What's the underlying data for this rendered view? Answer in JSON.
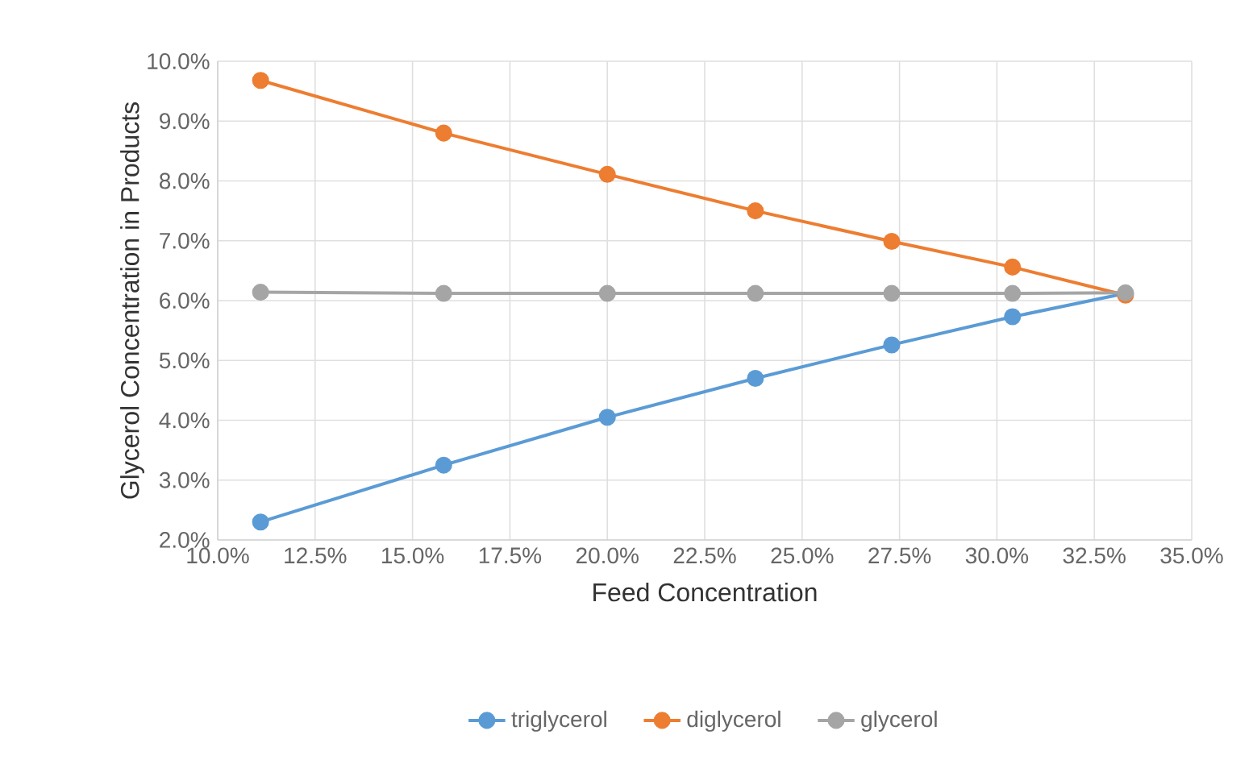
{
  "chart_data": {
    "type": "line",
    "xlabel": "Feed Concentration",
    "ylabel": "Glycerol Concentration in Products",
    "x": [
      11.1,
      15.8,
      20.0,
      23.8,
      27.3,
      30.4,
      33.3
    ],
    "series": [
      {
        "name": "triglycerol",
        "color": "#5b9bd5",
        "values": [
          2.3,
          3.25,
          4.05,
          4.7,
          5.26,
          5.73,
          6.12
        ]
      },
      {
        "name": "diglycerol",
        "color": "#ed7d31",
        "values": [
          9.68,
          8.8,
          8.11,
          7.5,
          6.99,
          6.56,
          6.09
        ]
      },
      {
        "name": "glycerol",
        "color": "#a5a5a5",
        "values": [
          6.14,
          6.12,
          6.12,
          6.12,
          6.12,
          6.12,
          6.13
        ]
      }
    ],
    "xlim": [
      10,
      35
    ],
    "ylim": [
      2,
      10
    ],
    "xticks": [
      {
        "value": 10,
        "label": "10.0%"
      },
      {
        "value": 12.5,
        "label": "12.5%"
      },
      {
        "value": 15,
        "label": "15.0%"
      },
      {
        "value": 17.5,
        "label": "17.5%"
      },
      {
        "value": 20,
        "label": "20.0%"
      },
      {
        "value": 22.5,
        "label": "22.5%"
      },
      {
        "value": 25,
        "label": "25.0%"
      },
      {
        "value": 27.5,
        "label": "27.5%"
      },
      {
        "value": 30,
        "label": "30.0%"
      },
      {
        "value": 32.5,
        "label": "32.5%"
      },
      {
        "value": 35,
        "label": "35.0%"
      }
    ],
    "yticks": [
      {
        "value": 2,
        "label": "2.0%"
      },
      {
        "value": 3,
        "label": "3.0%"
      },
      {
        "value": 4,
        "label": "4.0%"
      },
      {
        "value": 5,
        "label": "5.0%"
      },
      {
        "value": 6,
        "label": "6.0%"
      },
      {
        "value": 7,
        "label": "7.0%"
      },
      {
        "value": 8,
        "label": "8.0%"
      },
      {
        "value": 9,
        "label": "9.0%"
      },
      {
        "value": 10,
        "label": "10.0%"
      }
    ],
    "grid": true,
    "legend": "bottom",
    "marker": "circle",
    "line_style": "solid"
  }
}
